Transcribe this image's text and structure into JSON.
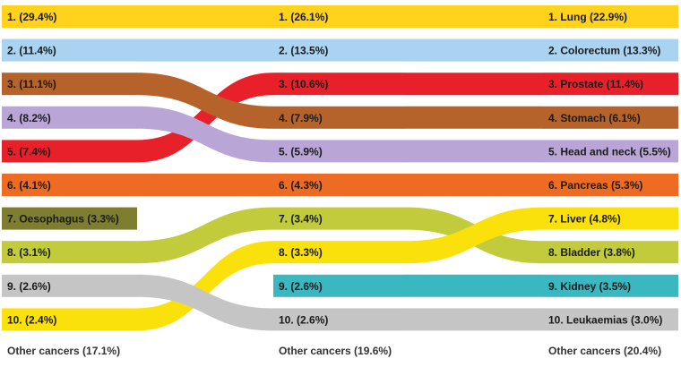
{
  "chart_data": {
    "type": "bump",
    "columns": [
      {
        "items": [
          {
            "rank": 1,
            "label": "1. (29.4%)",
            "value": 29.4,
            "site": "Lung"
          },
          {
            "rank": 2,
            "label": "2. (11.4%)",
            "value": 11.4,
            "site": "Colorectum"
          },
          {
            "rank": 3,
            "label": "3. (11.1%)",
            "value": 11.1,
            "site": "Stomach"
          },
          {
            "rank": 4,
            "label": "4. (8.2%)",
            "value": 8.2,
            "site": "Head and neck"
          },
          {
            "rank": 5,
            "label": "5. (7.4%)",
            "value": 7.4,
            "site": "Prostate"
          },
          {
            "rank": 6,
            "label": "6. (4.1%)",
            "value": 4.1,
            "site": "Pancreas"
          },
          {
            "rank": 7,
            "label": "7. Oesophagus (3.3%)",
            "value": 3.3,
            "site": "Oesophagus"
          },
          {
            "rank": 8,
            "label": "8. (3.1%)",
            "value": 3.1,
            "site": "Bladder"
          },
          {
            "rank": 9,
            "label": "9. (2.6%)",
            "value": 2.6,
            "site": "Leukaemias"
          },
          {
            "rank": 10,
            "label": "10. (2.4%)",
            "value": 2.4,
            "site": "Liver"
          }
        ],
        "other": "Other cancers (17.1%)",
        "other_value": 17.1
      },
      {
        "items": [
          {
            "rank": 1,
            "label": "1. (26.1%)",
            "value": 26.1,
            "site": "Lung"
          },
          {
            "rank": 2,
            "label": "2. (13.5%)",
            "value": 13.5,
            "site": "Colorectum"
          },
          {
            "rank": 3,
            "label": "3. (10.6%)",
            "value": 10.6,
            "site": "Prostate"
          },
          {
            "rank": 4,
            "label": "4. (7.9%)",
            "value": 7.9,
            "site": "Stomach"
          },
          {
            "rank": 5,
            "label": "5. (5.9%)",
            "value": 5.9,
            "site": "Head and neck"
          },
          {
            "rank": 6,
            "label": "6. (4.3%)",
            "value": 4.3,
            "site": "Pancreas"
          },
          {
            "rank": 7,
            "label": "7. (3.4%)",
            "value": 3.4,
            "site": "Bladder"
          },
          {
            "rank": 8,
            "label": "8. (3.3%)",
            "value": 3.3,
            "site": "Liver"
          },
          {
            "rank": 9,
            "label": "9. (2.6%)",
            "value": 2.6,
            "site": "Kidney"
          },
          {
            "rank": 10,
            "label": "10. (2.6%)",
            "value": 2.6,
            "site": "Leukaemias"
          }
        ],
        "other": "Other cancers (19.6%)",
        "other_value": 19.6
      },
      {
        "items": [
          {
            "rank": 1,
            "label": "1. Lung (22.9%)",
            "value": 22.9,
            "site": "Lung"
          },
          {
            "rank": 2,
            "label": "2. Colorectum (13.3%)",
            "value": 13.3,
            "site": "Colorectum"
          },
          {
            "rank": 3,
            "label": "3. Prostate (11.4%)",
            "value": 11.4,
            "site": "Prostate"
          },
          {
            "rank": 4,
            "label": "4. Stomach (6.1%)",
            "value": 6.1,
            "site": "Stomach"
          },
          {
            "rank": 5,
            "label": "5. Head and neck (5.5%)",
            "value": 5.5,
            "site": "Head and neck"
          },
          {
            "rank": 6,
            "label": "6. Pancreas (5.3%)",
            "value": 5.3,
            "site": "Pancreas"
          },
          {
            "rank": 7,
            "label": "7. Liver (4.8%)",
            "value": 4.8,
            "site": "Liver"
          },
          {
            "rank": 8,
            "label": "8. Bladder (3.8%)",
            "value": 3.8,
            "site": "Bladder"
          },
          {
            "rank": 9,
            "label": "9. Kidney (3.5%)",
            "value": 3.5,
            "site": "Kidney"
          },
          {
            "rank": 10,
            "label": "10. Leukaemias (3.0%)",
            "value": 3.0,
            "site": "Leukaemias"
          }
        ],
        "other": "Other cancers (20.4%)",
        "other_value": 20.4
      }
    ],
    "site_colors": {
      "Lung": "#ffd21c",
      "Colorectum": "#a9d3f0",
      "Prostate": "#e8202a",
      "Stomach": "#b5622b",
      "Head and neck": "#b9a6d6",
      "Pancreas": "#ee6b23",
      "Oesophagus": "#7d7e2f",
      "Bladder": "#c1cb3b",
      "Liver": "#fbe10c",
      "Kidney": "#39b8c1",
      "Leukaemias": "#c5c5c5"
    }
  }
}
